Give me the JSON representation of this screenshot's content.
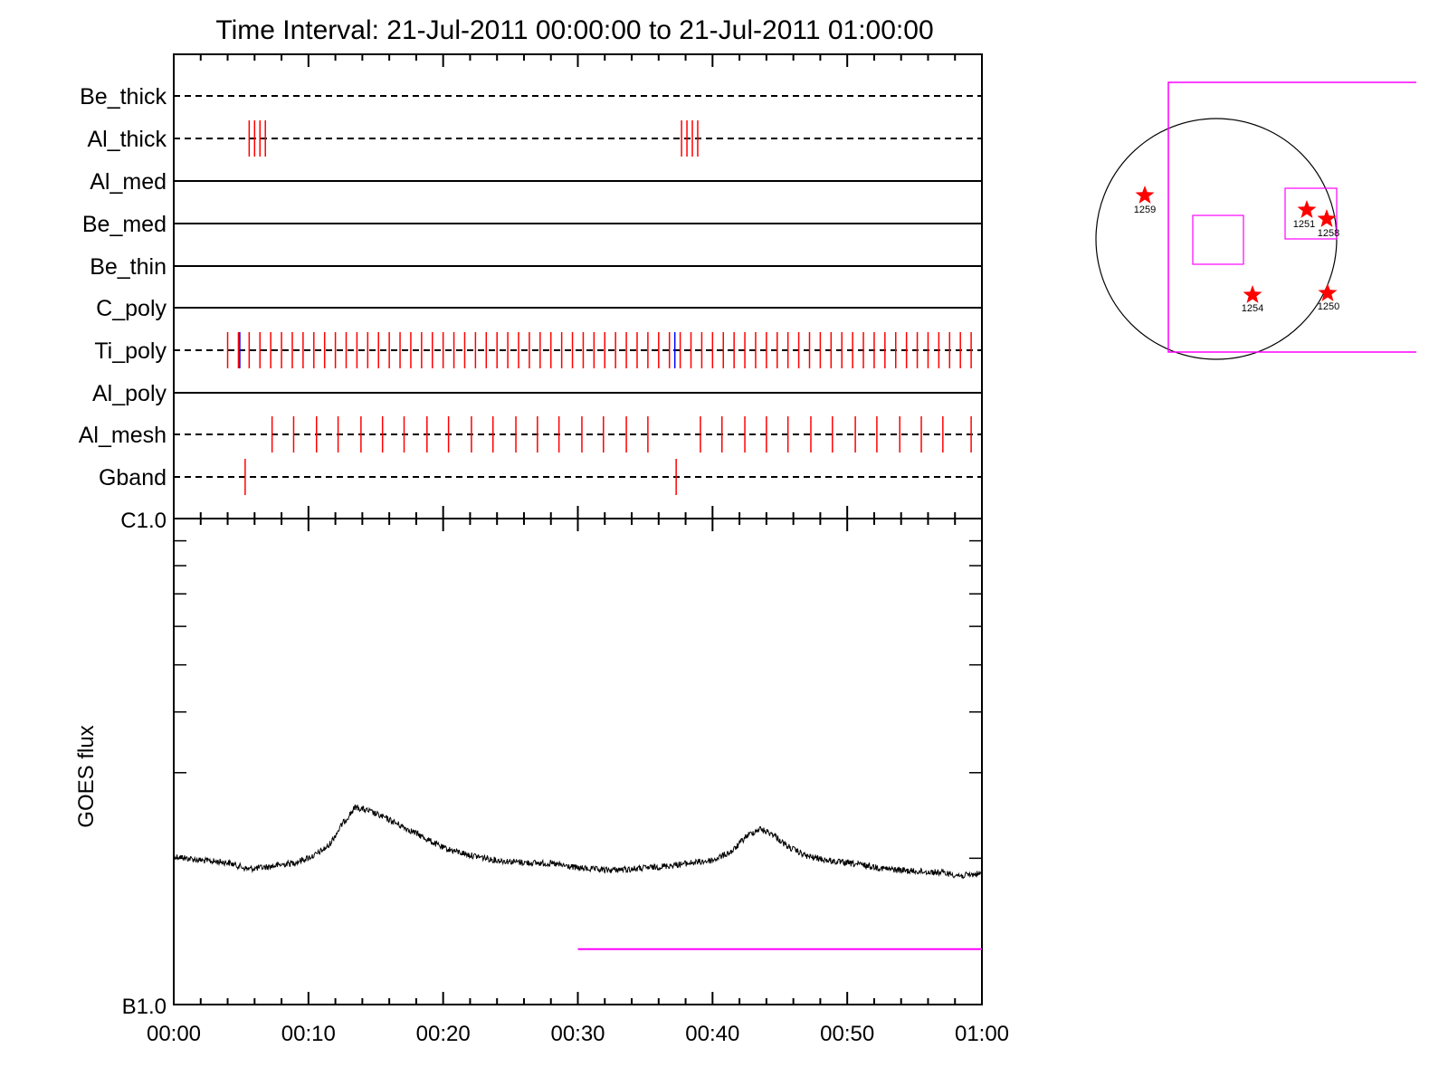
{
  "title": "Time Interval: 21-Jul-2011 00:00:00 to 21-Jul-2011 01:00:00",
  "colors": {
    "axis": "#000000",
    "tick_mark": "#ff0000",
    "tick_mark_alt": "#0000ff",
    "highlight": "#ff00ff",
    "star": "#ff0000"
  },
  "chart_data": [
    {
      "type": "timeline",
      "x": {
        "min_minutes": 0,
        "max_minutes": 60
      },
      "rows": [
        {
          "label": "Be_thick",
          "style": "dashed",
          "events_min": []
        },
        {
          "label": "Al_thick",
          "style": "dashed",
          "events_min": [
            5.6,
            6.0,
            6.4,
            6.8,
            37.7,
            38.1,
            38.5,
            38.9
          ]
        },
        {
          "label": "Al_med",
          "style": "solid",
          "events_min": []
        },
        {
          "label": "Be_med",
          "style": "solid",
          "events_min": []
        },
        {
          "label": "Be_thin",
          "style": "solid",
          "events_min": []
        },
        {
          "label": "C_poly",
          "style": "solid",
          "events_min": []
        },
        {
          "label": "Ti_poly",
          "style": "dashed",
          "events_start_min": 4.0,
          "events_end_min": 59.9,
          "events_step_min": 0.8,
          "alt_color_events_min": [
            4.9,
            37.2
          ]
        },
        {
          "label": "Al_poly",
          "style": "solid",
          "events_min": []
        },
        {
          "label": "Al_mesh",
          "style": "dashed",
          "events_min": [
            7.3,
            8.9,
            10.6,
            12.2,
            13.9,
            15.5,
            17.1,
            18.8,
            20.4,
            22.1,
            23.7,
            25.4,
            27.0,
            28.6,
            30.3,
            31.9,
            33.6,
            35.2,
            39.1,
            40.7,
            42.4,
            44.0,
            45.6,
            47.3,
            48.9,
            50.6,
            52.2,
            53.9,
            55.5,
            57.1,
            59.2
          ]
        },
        {
          "label": "Gband",
          "style": "dashed",
          "events_min": [
            5.3,
            37.3
          ]
        }
      ]
    },
    {
      "type": "line",
      "title": "Time Interval: 21-Jul-2011 00:00:00 to 21-Jul-2011 01:00:00",
      "xlabel": "",
      "ylabel": "GOES flux",
      "y_scale": "log",
      "y_tick_labels": [
        "B1.0",
        "C1.0"
      ],
      "ylim": [
        1e-07,
        1e-06
      ],
      "x_tick_labels": [
        "00:00",
        "00:10",
        "00:20",
        "00:30",
        "00:40",
        "00:50",
        "01:00"
      ],
      "x_ticks_min": [
        0,
        10,
        20,
        30,
        40,
        50,
        60
      ],
      "xlim_min": [
        0,
        60
      ],
      "series": [
        {
          "x_min": [
            0,
            2,
            4,
            5.5,
            7,
            9,
            10.5,
            11.5,
            12.5,
            13.5,
            14.5,
            16,
            18,
            20,
            22,
            24,
            26,
            28,
            30,
            32,
            34,
            36,
            38,
            40,
            41.5,
            42.5,
            43.5,
            44.5,
            45.5,
            47,
            49,
            51,
            53,
            55,
            57,
            58.5,
            60
          ],
          "y": [
            2.02e-07,
            1.98e-07,
            1.96e-07,
            1.9e-07,
            1.92e-07,
            1.96e-07,
            2.03e-07,
            2.12e-07,
            2.35e-07,
            2.55e-07,
            2.5e-07,
            2.4e-07,
            2.25e-07,
            2.1e-07,
            2.03e-07,
            1.98e-07,
            1.96e-07,
            1.95e-07,
            1.91e-07,
            1.89e-07,
            1.9e-07,
            1.92e-07,
            1.95e-07,
            1.98e-07,
            2.07e-07,
            2.22e-07,
            2.3e-07,
            2.24e-07,
            2.12e-07,
            2.02e-07,
            1.97e-07,
            1.94e-07,
            1.9e-07,
            1.88e-07,
            1.87e-07,
            1.84e-07,
            1.86e-07
          ]
        }
      ],
      "highlight_interval_min": [
        30,
        60
      ],
      "highlight_level": 1.3e-07
    },
    {
      "type": "scatter",
      "description_label": "",
      "points": [
        {
          "label": "1259"
        },
        {
          "label": "1251"
        },
        {
          "label": "1258"
        },
        {
          "label": "1254"
        },
        {
          "label": "1250"
        }
      ]
    }
  ]
}
